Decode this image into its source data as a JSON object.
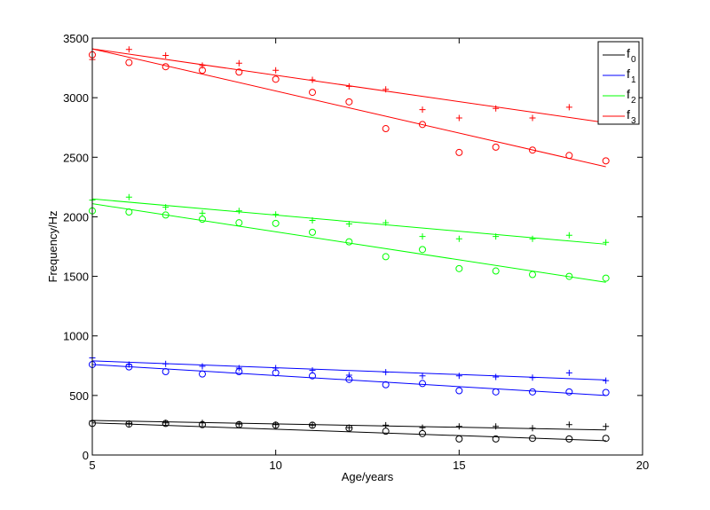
{
  "chart_data": {
    "type": "scatter",
    "title": "",
    "xlabel": "Age/years",
    "ylabel": "Frequency/Hz",
    "xlim": [
      5,
      20
    ],
    "ylim": [
      0,
      3500
    ],
    "xticks": [
      5,
      10,
      15,
      20
    ],
    "yticks": [
      0,
      500,
      1000,
      1500,
      2000,
      2500,
      3000,
      3500
    ],
    "grid": false,
    "legend_position": "top-right",
    "x": [
      5,
      6,
      7,
      8,
      9,
      10,
      11,
      12,
      13,
      14,
      15,
      16,
      17,
      18,
      19
    ],
    "series": [
      {
        "name": "f0",
        "label_base": "f",
        "label_sub": "0",
        "color": "#000000",
        "plus_values": [
          285,
          265,
          270,
          270,
          260,
          255,
          250,
          230,
          250,
          230,
          240,
          240,
          225,
          255,
          240
        ],
        "circle_values": [
          265,
          260,
          265,
          255,
          255,
          250,
          250,
          225,
          200,
          180,
          135,
          135,
          140,
          135,
          140
        ],
        "plus_fit": [
          290,
          210
        ],
        "circle_fit": [
          270,
          120
        ]
      },
      {
        "name": "f1",
        "label_base": "f",
        "label_sub": "1",
        "color": "#0000ff",
        "plus_values": [
          815,
          760,
          765,
          745,
          730,
          730,
          710,
          670,
          695,
          665,
          665,
          655,
          650,
          690,
          625
        ],
        "circle_values": [
          760,
          740,
          700,
          680,
          700,
          690,
          665,
          635,
          590,
          600,
          540,
          530,
          530,
          530,
          525
        ],
        "plus_fit": [
          790,
          630
        ],
        "circle_fit": [
          760,
          500
        ]
      },
      {
        "name": "f2",
        "label_base": "f",
        "label_sub": "2",
        "color": "#00ff00",
        "plus_values": [
          2140,
          2165,
          2080,
          2030,
          2050,
          2020,
          1970,
          1940,
          1950,
          1835,
          1815,
          1835,
          1815,
          1845,
          1785
        ],
        "circle_values": [
          2050,
          2040,
          2015,
          1980,
          1950,
          1945,
          1870,
          1790,
          1665,
          1725,
          1565,
          1545,
          1515,
          1500,
          1485
        ],
        "plus_fit": [
          2150,
          1770
        ],
        "circle_fit": [
          2110,
          1450
        ]
      },
      {
        "name": "f3",
        "label_base": "f",
        "label_sub": "3",
        "color": "#ff0000",
        "plus_values": [
          3320,
          3405,
          3355,
          3270,
          3290,
          3230,
          3150,
          3095,
          3070,
          2900,
          2830,
          2910,
          2830,
          2920,
          null
        ],
        "circle_values": [
          3360,
          3295,
          3260,
          3230,
          3215,
          3155,
          3045,
          2965,
          2740,
          2775,
          2540,
          2585,
          2560,
          2515,
          2470
        ],
        "plus_fit": [
          3410,
          2790
        ],
        "circle_fit": [
          3410,
          2420
        ]
      }
    ],
    "fit_x_range": [
      5,
      19
    ]
  }
}
